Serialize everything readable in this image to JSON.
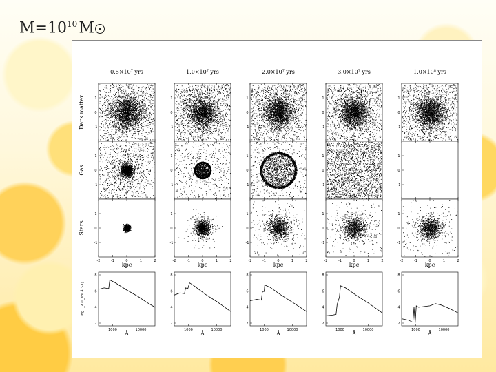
{
  "slide": {
    "title_base": "M=10",
    "title_exp": "10",
    "title_unit": "M"
  },
  "figure": {
    "column_headers": [
      {
        "mant": "0.5×10",
        "exp": "7",
        "unit": " yrs"
      },
      {
        "mant": "1.0×10",
        "exp": "7",
        "unit": " yrs"
      },
      {
        "mant": "2.0×10",
        "exp": "7",
        "unit": " yrs"
      },
      {
        "mant": "3.0×10",
        "exp": "7",
        "unit": " yrs"
      },
      {
        "mant": "1.0×10",
        "exp": "8",
        "unit": " yrs"
      }
    ],
    "row_labels": [
      "Dark matter",
      "Gas",
      "Stars"
    ],
    "spatial_axis_label": "kpc",
    "spatial_ticks": [
      "-2",
      "-1",
      "0",
      "1",
      "2"
    ],
    "spatial_yticks": [
      "1",
      "0",
      "-1"
    ],
    "spectrum_xlabel": "Å",
    "spectrum_xticks": [
      "1000",
      "10000"
    ],
    "spectrum_yticks": [
      "8",
      "6",
      "4",
      "2"
    ],
    "spectrum_ylabel": "log L_λ (L_sol Å^-1)",
    "panels": {
      "dark_matter": [
        {
          "core": 0.28,
          "spread": 0.55
        },
        {
          "core": 0.25,
          "spread": 0.58
        },
        {
          "core": 0.25,
          "spread": 0.58
        },
        {
          "core": 0.25,
          "spread": 0.6
        },
        {
          "core": 0.25,
          "spread": 0.6
        }
      ],
      "gas": [
        {
          "kind": "blob",
          "radius": 0.22
        },
        {
          "kind": "shell",
          "radius": 0.3
        },
        {
          "kind": "shell",
          "radius": 0.65
        },
        {
          "kind": "diffuse",
          "radius": 1.0
        },
        {
          "kind": "none",
          "radius": 0
        }
      ],
      "stars": [
        {
          "radius": 0.12
        },
        {
          "radius": 0.28
        },
        {
          "radius": 0.38
        },
        {
          "radius": 0.45
        },
        {
          "radius": 0.4
        }
      ]
    },
    "spectra": [
      {
        "points": [
          [
            0,
            6.1
          ],
          [
            0.1,
            6.3
          ],
          [
            0.18,
            6.2
          ],
          [
            0.2,
            7.4
          ],
          [
            0.3,
            7.0
          ],
          [
            0.5,
            6.0
          ],
          [
            0.7,
            5.1
          ],
          [
            0.85,
            4.3
          ],
          [
            1,
            3.6
          ]
        ]
      },
      {
        "points": [
          [
            0,
            5.3
          ],
          [
            0.1,
            5.6
          ],
          [
            0.18,
            5.5
          ],
          [
            0.2,
            6.3
          ],
          [
            0.24,
            6.2
          ],
          [
            0.27,
            7.0
          ],
          [
            0.35,
            6.6
          ],
          [
            0.55,
            5.4
          ],
          [
            0.75,
            4.4
          ],
          [
            1,
            3.0
          ]
        ]
      },
      {
        "points": [
          [
            0,
            4.5
          ],
          [
            0.12,
            4.7
          ],
          [
            0.2,
            4.6
          ],
          [
            0.22,
            5.8
          ],
          [
            0.25,
            5.8
          ],
          [
            0.26,
            6.7
          ],
          [
            0.35,
            6.4
          ],
          [
            0.55,
            5.3
          ],
          [
            0.75,
            4.3
          ],
          [
            1,
            3.0
          ]
        ]
      },
      {
        "points": [
          [
            0,
            2.4
          ],
          [
            0.12,
            2.5
          ],
          [
            0.18,
            2.6
          ],
          [
            0.2,
            4.0
          ],
          [
            0.24,
            5.0
          ],
          [
            0.26,
            6.6
          ],
          [
            0.35,
            6.3
          ],
          [
            0.55,
            5.2
          ],
          [
            0.75,
            4.2
          ],
          [
            1,
            2.8
          ]
        ]
      },
      {
        "points": [
          [
            0,
            2.0
          ],
          [
            0.12,
            1.8
          ],
          [
            0.2,
            1.5
          ],
          [
            0.22,
            3.6
          ],
          [
            0.24,
            1.4
          ],
          [
            0.26,
            3.8
          ],
          [
            0.3,
            3.6
          ],
          [
            0.4,
            3.7
          ],
          [
            0.5,
            3.8
          ],
          [
            0.6,
            4.1
          ],
          [
            0.7,
            3.9
          ],
          [
            0.85,
            3.4
          ],
          [
            1,
            2.8
          ]
        ]
      }
    ]
  }
}
